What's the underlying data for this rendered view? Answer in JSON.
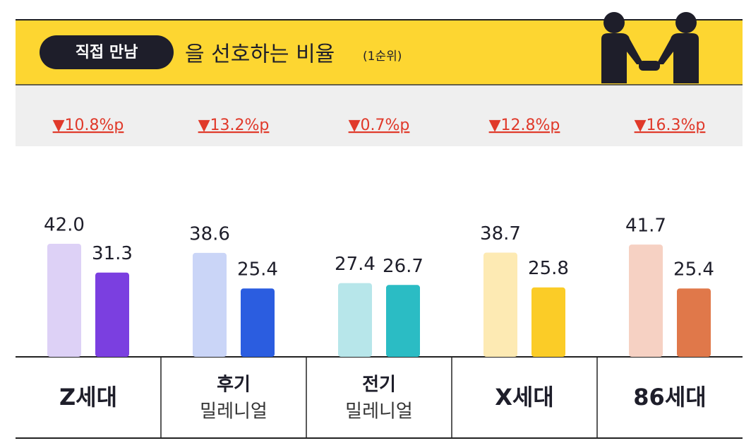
{
  "chart_data": {
    "type": "grouped-bar",
    "badge": "직접 만남",
    "title": "을 선호하는 비율",
    "subtitle": "(1순위)",
    "categories": [
      [
        "Z세대"
      ],
      [
        "후기",
        "밀레니얼"
      ],
      [
        "전기",
        "밀레니얼"
      ],
      [
        "X세대"
      ],
      [
        "86세대"
      ]
    ],
    "changes": [
      "▼10.8%p",
      "▼13.2%p",
      "▼0.7%p",
      "▼12.8%p",
      "▼16.3%p"
    ],
    "series": [
      {
        "colors": [
          "#ddd1f6",
          "#cad5f7",
          "#b7e6ea",
          "#fdeab3",
          "#f6d1c3"
        ],
        "values": [
          42.0,
          38.6,
          27.4,
          38.7,
          41.7
        ],
        "value_labels": [
          "42.0",
          "38.6",
          "27.4",
          "38.7",
          "41.7"
        ]
      },
      {
        "colors": [
          "#7b3fe0",
          "#2b5de0",
          "#2bbcc4",
          "#fbcc27",
          "#e0784a"
        ],
        "values": [
          31.3,
          25.4,
          26.7,
          25.8,
          25.4
        ],
        "value_labels": [
          "31.3",
          "25.4",
          "26.7",
          "25.8",
          "25.4"
        ]
      }
    ]
  }
}
